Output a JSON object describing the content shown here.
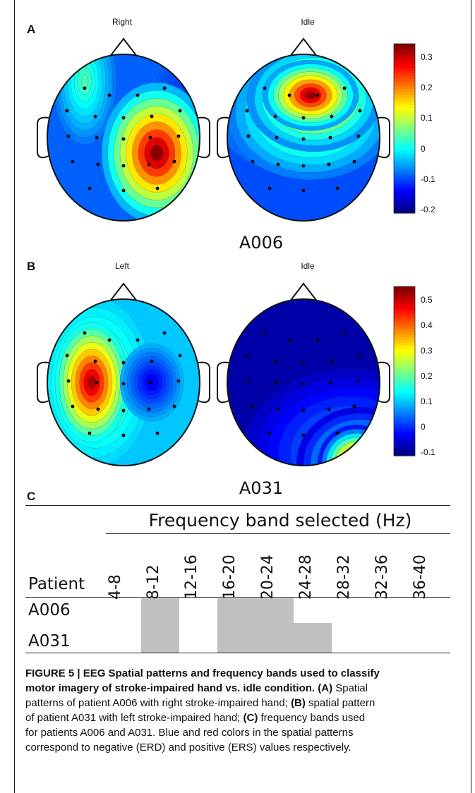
{
  "panelA": {
    "letter": "A",
    "left_title": "Right",
    "right_title": "Idle",
    "patient": "A006",
    "colorbar_ticks": [
      "0.3",
      "0.2",
      "0.1",
      "0",
      "-0.1",
      "-0.2"
    ]
  },
  "panelB": {
    "letter": "B",
    "left_title": "Left",
    "right_title": "Idle",
    "patient": "A031",
    "colorbar_ticks": [
      "0.5",
      "0.4",
      "0.3",
      "0.2",
      "0.1",
      "0",
      "-0.1"
    ]
  },
  "panelC": {
    "letter": "C",
    "table_title": "Frequency band selected (Hz)",
    "row_header": "Patient",
    "bands": [
      "4-8",
      "8-12",
      "12-16",
      "16-20",
      "20-24",
      "24-28",
      "28-32",
      "32-36",
      "36-40"
    ],
    "rows": [
      {
        "patient": "A006",
        "selected": [
          false,
          true,
          false,
          true,
          true,
          false,
          false,
          false,
          false
        ]
      },
      {
        "patient": "A031",
        "selected": [
          false,
          true,
          false,
          true,
          true,
          true,
          false,
          false,
          false
        ]
      }
    ],
    "fill_color": "#c0c0c0"
  },
  "caption": {
    "label": "FIGURE 5 | EEG Spatial patterns and frequency bands used to classify",
    "label2": "motor imagery of stroke-impaired hand vs. idle condition.",
    "a_tag": "(A)",
    "line2_rest": " Spatial",
    "line3": "patterns of patient A006 with right stroke-impaired hand; ",
    "b_tag": "(B)",
    "line3_rest": " spatial pattern",
    "line4": "of patient A031 with left stroke-impaired hand; ",
    "c_tag": "(C)",
    "line4_rest": " frequency bands used",
    "line5": "for patients A006 and A031. Blue and red colors in the spatial patterns",
    "line6": "correspond to negative (ERD) and positive (ERS) values respectively."
  }
}
